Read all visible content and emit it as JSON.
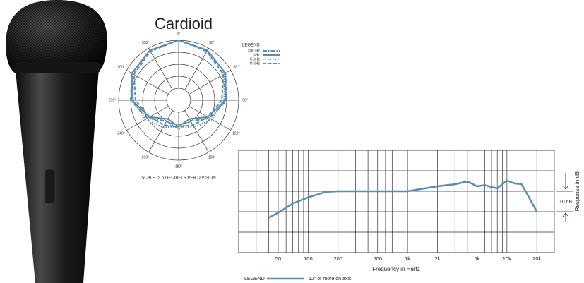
{
  "chart_data": [
    {
      "type": "polar",
      "title": "Cardioid",
      "theta": [
        {
          "value": 0,
          "label": "0°"
        },
        {
          "value": 30,
          "label": "30°"
        },
        {
          "value": 60,
          "label": "60°"
        },
        {
          "value": 90,
          "label": "90°"
        },
        {
          "value": 120,
          "label": "120°"
        },
        {
          "value": 150,
          "label": "150°"
        },
        {
          "value": 180,
          "label": "180°"
        },
        {
          "value": 210,
          "label": "210°"
        },
        {
          "value": 240,
          "label": "240°"
        },
        {
          "value": 270,
          "label": "270°"
        },
        {
          "value": 300,
          "label": "300°"
        },
        {
          "value": 330,
          "label": "330°"
        }
      ],
      "rlim": [
        -25,
        0
      ],
      "rticks": [
        -20,
        -15,
        -10,
        -5,
        0
      ],
      "legend_title": "LEGEND",
      "series": [
        {
          "name": "200 Hz",
          "color": "#5a8db0",
          "style": "dash-dot",
          "values": [
            0,
            -1,
            -2.5,
            -5,
            -10,
            -15,
            -13,
            -15,
            -10,
            -5,
            -2.5,
            -1
          ]
        },
        {
          "name": "1 kHz",
          "color": "#5a8db0",
          "style": "solid",
          "values": [
            0,
            -1,
            -2.5,
            -5.5,
            -11,
            -16,
            -14,
            -16,
            -11,
            -5.5,
            -2.5,
            -1
          ]
        },
        {
          "name": "5 kHz",
          "color": "#5a8db0",
          "style": "dotted",
          "values": [
            0,
            -1,
            -3,
            -6,
            -9,
            -12,
            -14,
            -12,
            -9,
            -6,
            -3,
            -1
          ]
        },
        {
          "name": "8 kHz",
          "color": "#5a8db0",
          "style": "dashed",
          "values": [
            0,
            -1.5,
            -3.5,
            -7,
            -11,
            -13,
            -14,
            -13,
            -11,
            -7,
            -3.5,
            -1.5
          ]
        }
      ],
      "caption": "SCALE IS 5 DECIBELS PER DIVISION"
    },
    {
      "type": "line",
      "log_x": true,
      "xlabel": "Frequency in Hertz",
      "ylabel": "Response in dB",
      "xlim": [
        20,
        30000
      ],
      "ylim": [
        -30,
        20
      ],
      "xticks": [
        50,
        100,
        200,
        500,
        {
          "value": 1000,
          "label": "1k"
        },
        {
          "value": 2000,
          "label": "2k"
        },
        {
          "value": 5000,
          "label": "5k"
        },
        {
          "value": 10000,
          "label": "10k"
        },
        {
          "value": 20000,
          "label": "20k"
        }
      ],
      "xgrid": [
        20,
        30,
        40,
        50,
        60,
        70,
        80,
        90,
        100,
        200,
        300,
        400,
        500,
        600,
        700,
        800,
        900,
        1000,
        2000,
        3000,
        4000,
        5000,
        6000,
        7000,
        8000,
        9000,
        10000,
        20000
      ],
      "yticks": [
        -30,
        -20,
        -10,
        0,
        10,
        20
      ],
      "annotation": "10 dB",
      "legend_title": "LEGEND",
      "series": [
        {
          "name": "12\" or more on axis",
          "color": "#5a8db0",
          "x": [
            40,
            50,
            70,
            100,
            150,
            200,
            300,
            500,
            1000,
            2000,
            3000,
            4000,
            5000,
            6000,
            7000,
            8000,
            10000,
            12000,
            14000,
            16000,
            18000,
            20000
          ],
          "values": [
            -13,
            -10.5,
            -6,
            -3,
            -0.3,
            0,
            0,
            0,
            0,
            2.4,
            3.4,
            4.8,
            2.4,
            3,
            2,
            1.4,
            5.2,
            3.8,
            3.5,
            -1.4,
            -6,
            -10
          ]
        }
      ]
    }
  ]
}
